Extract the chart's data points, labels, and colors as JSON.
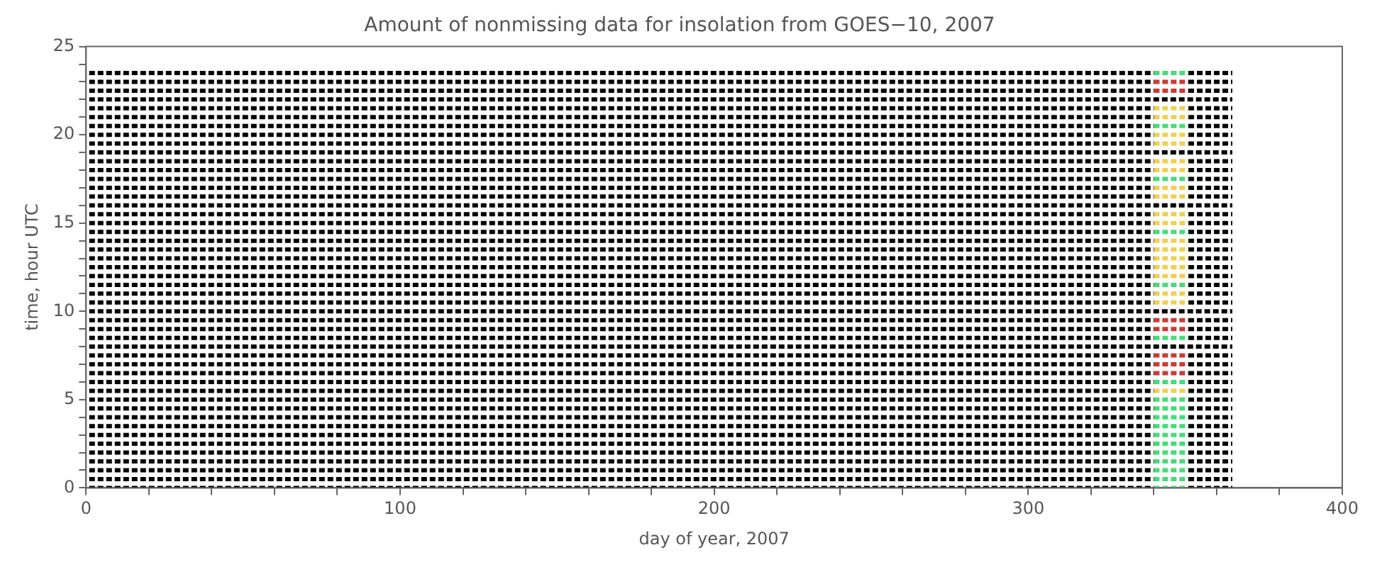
{
  "chart_data": {
    "type": "line",
    "title": "Amount of nonmissing data for insolation from GOES−10, 2007",
    "xlabel": "day of year, 2007",
    "ylabel": "time, hour UTC",
    "xlim": [
      0,
      400
    ],
    "xticks": [
      0,
      {
        "value": 20,
        "label": null
      },
      {
        "value": 40,
        "label": null
      },
      {
        "value": 60,
        "label": null
      },
      {
        "value": 80,
        "label": null
      },
      100,
      {
        "value": 120,
        "label": null
      },
      {
        "value": 140,
        "label": null
      },
      {
        "value": 160,
        "label": null
      },
      {
        "value": 180,
        "label": null
      },
      200,
      {
        "value": 220,
        "label": null
      },
      {
        "value": 240,
        "label": null
      },
      {
        "value": 260,
        "label": null
      },
      {
        "value": 280,
        "label": null
      },
      300,
      {
        "value": 320,
        "label": null
      },
      {
        "value": 340,
        "label": null
      },
      {
        "value": 360,
        "label": null
      },
      {
        "value": 380,
        "label": null
      },
      400
    ],
    "ylim": [
      0,
      25
    ],
    "yticks": [
      0,
      {
        "value": 1,
        "label": null
      },
      {
        "value": 2,
        "label": null
      },
      {
        "value": 3,
        "label": null
      },
      {
        "value": 4,
        "label": null
      },
      5,
      {
        "value": 6,
        "label": null
      },
      {
        "value": 7,
        "label": null
      },
      {
        "value": 8,
        "label": null
      },
      {
        "value": 9,
        "label": null
      },
      10,
      {
        "value": 11,
        "label": null
      },
      {
        "value": 12,
        "label": null
      },
      {
        "value": 13,
        "label": null
      },
      {
        "value": 14,
        "label": null
      },
      15,
      {
        "value": 16,
        "label": null
      },
      {
        "value": 17,
        "label": null
      },
      {
        "value": 18,
        "label": null
      },
      {
        "value": 19,
        "label": null
      },
      20,
      {
        "value": 21,
        "label": null
      },
      {
        "value": 22,
        "label": null
      },
      {
        "value": 23,
        "label": null
      },
      {
        "value": 24,
        "label": null
      },
      25
    ],
    "grid": false,
    "legend": false,
    "marker": "none",
    "line_style": "dashed",
    "series": [
      {
        "color": "#000000",
        "x": [
          1,
          340
        ],
        "values": [
          0,
          0
        ]
      },
      {
        "color": "#44dd77",
        "x": [
          340,
          351
        ],
        "values": [
          0,
          0
        ]
      },
      {
        "color": "#000000",
        "x": [
          351,
          365
        ],
        "values": [
          0,
          0
        ]
      },
      {
        "color": "#000000",
        "x": [
          1,
          340
        ],
        "values": [
          0.5,
          0.5
        ]
      },
      {
        "color": "#44dd77",
        "x": [
          340,
          351
        ],
        "values": [
          0.5,
          0.5
        ]
      },
      {
        "color": "#000000",
        "x": [
          351,
          365
        ],
        "values": [
          0.5,
          0.5
        ]
      },
      {
        "color": "#000000",
        "x": [
          1,
          340
        ],
        "values": [
          1,
          1
        ]
      },
      {
        "color": "#44dd77",
        "x": [
          340,
          351
        ],
        "values": [
          1,
          1
        ]
      },
      {
        "color": "#000000",
        "x": [
          351,
          365
        ],
        "values": [
          1,
          1
        ]
      },
      {
        "color": "#000000",
        "x": [
          1,
          340
        ],
        "values": [
          1.5,
          1.5
        ]
      },
      {
        "color": "#44dd77",
        "x": [
          340,
          351
        ],
        "values": [
          1.5,
          1.5
        ]
      },
      {
        "color": "#000000",
        "x": [
          351,
          365
        ],
        "values": [
          1.5,
          1.5
        ]
      },
      {
        "color": "#000000",
        "x": [
          1,
          340
        ],
        "values": [
          2,
          2
        ]
      },
      {
        "color": "#44dd77",
        "x": [
          340,
          351
        ],
        "values": [
          2,
          2
        ]
      },
      {
        "color": "#000000",
        "x": [
          351,
          365
        ],
        "values": [
          2,
          2
        ]
      },
      {
        "color": "#000000",
        "x": [
          1,
          340
        ],
        "values": [
          2.5,
          2.5
        ]
      },
      {
        "color": "#44dd77",
        "x": [
          340,
          351
        ],
        "values": [
          2.5,
          2.5
        ]
      },
      {
        "color": "#000000",
        "x": [
          351,
          365
        ],
        "values": [
          2.5,
          2.5
        ]
      },
      {
        "color": "#000000",
        "x": [
          1,
          340
        ],
        "values": [
          3,
          3
        ]
      },
      {
        "color": "#44dd77",
        "x": [
          340,
          351
        ],
        "values": [
          3,
          3
        ]
      },
      {
        "color": "#000000",
        "x": [
          351,
          365
        ],
        "values": [
          3,
          3
        ]
      },
      {
        "color": "#000000",
        "x": [
          1,
          340
        ],
        "values": [
          3.5,
          3.5
        ]
      },
      {
        "color": "#44dd77",
        "x": [
          340,
          351
        ],
        "values": [
          3.5,
          3.5
        ]
      },
      {
        "color": "#000000",
        "x": [
          351,
          365
        ],
        "values": [
          3.5,
          3.5
        ]
      },
      {
        "color": "#000000",
        "x": [
          1,
          340
        ],
        "values": [
          4,
          4
        ]
      },
      {
        "color": "#44dd77",
        "x": [
          340,
          351
        ],
        "values": [
          4,
          4
        ]
      },
      {
        "color": "#000000",
        "x": [
          351,
          365
        ],
        "values": [
          4,
          4
        ]
      },
      {
        "color": "#000000",
        "x": [
          1,
          340
        ],
        "values": [
          4.5,
          4.5
        ]
      },
      {
        "color": "#44dd77",
        "x": [
          340,
          351
        ],
        "values": [
          4.5,
          4.5
        ]
      },
      {
        "color": "#000000",
        "x": [
          351,
          365
        ],
        "values": [
          4.5,
          4.5
        ]
      },
      {
        "color": "#000000",
        "x": [
          1,
          340
        ],
        "values": [
          5,
          5
        ]
      },
      {
        "color": "#44dd77",
        "x": [
          340,
          351
        ],
        "values": [
          5,
          5
        ]
      },
      {
        "color": "#000000",
        "x": [
          351,
          365
        ],
        "values": [
          5,
          5
        ]
      },
      {
        "color": "#000000",
        "x": [
          1,
          340
        ],
        "values": [
          5.5,
          5.5
        ]
      },
      {
        "color": "#f0d050",
        "x": [
          340,
          351
        ],
        "values": [
          5.5,
          5.5
        ]
      },
      {
        "color": "#000000",
        "x": [
          351,
          365
        ],
        "values": [
          5.5,
          5.5
        ]
      },
      {
        "color": "#000000",
        "x": [
          1,
          340
        ],
        "values": [
          6,
          6
        ]
      },
      {
        "color": "#44dd77",
        "x": [
          340,
          351
        ],
        "values": [
          6,
          6
        ]
      },
      {
        "color": "#000000",
        "x": [
          351,
          365
        ],
        "values": [
          6,
          6
        ]
      },
      {
        "color": "#000000",
        "x": [
          1,
          340
        ],
        "values": [
          6.5,
          6.5
        ]
      },
      {
        "color": "#cc3b33",
        "x": [
          340,
          351
        ],
        "values": [
          6.5,
          6.5
        ]
      },
      {
        "color": "#000000",
        "x": [
          351,
          365
        ],
        "values": [
          6.5,
          6.5
        ]
      },
      {
        "color": "#000000",
        "x": [
          1,
          340
        ],
        "values": [
          7,
          7
        ]
      },
      {
        "color": "#cc3b33",
        "x": [
          340,
          351
        ],
        "values": [
          7,
          7
        ]
      },
      {
        "color": "#000000",
        "x": [
          351,
          365
        ],
        "values": [
          7,
          7
        ]
      },
      {
        "color": "#000000",
        "x": [
          1,
          340
        ],
        "values": [
          7.5,
          7.5
        ]
      },
      {
        "color": "#cc3b33",
        "x": [
          340,
          351
        ],
        "values": [
          7.5,
          7.5
        ]
      },
      {
        "color": "#000000",
        "x": [
          351,
          365
        ],
        "values": [
          7.5,
          7.5
        ]
      },
      {
        "color": "#000000",
        "x": [
          1,
          365
        ],
        "values": [
          8,
          8
        ]
      },
      {
        "color": "#000000",
        "x": [
          1,
          340
        ],
        "values": [
          8.5,
          8.5
        ]
      },
      {
        "color": "#44dd77",
        "x": [
          340,
          351
        ],
        "values": [
          8.5,
          8.5
        ]
      },
      {
        "color": "#000000",
        "x": [
          351,
          365
        ],
        "values": [
          8.5,
          8.5
        ]
      },
      {
        "color": "#000000",
        "x": [
          1,
          340
        ],
        "values": [
          9,
          9
        ]
      },
      {
        "color": "#cc3b33",
        "x": [
          340,
          351
        ],
        "values": [
          9,
          9
        ]
      },
      {
        "color": "#000000",
        "x": [
          351,
          365
        ],
        "values": [
          9,
          9
        ]
      },
      {
        "color": "#000000",
        "x": [
          1,
          340
        ],
        "values": [
          9.5,
          9.5
        ]
      },
      {
        "color": "#cc3b33",
        "x": [
          340,
          351
        ],
        "values": [
          9.5,
          9.5
        ]
      },
      {
        "color": "#000000",
        "x": [
          351,
          365
        ],
        "values": [
          9.5,
          9.5
        ]
      },
      {
        "color": "#000000",
        "x": [
          1,
          365
        ],
        "values": [
          10,
          10
        ]
      },
      {
        "color": "#000000",
        "x": [
          1,
          340
        ],
        "values": [
          10.5,
          10.5
        ]
      },
      {
        "color": "#f0d050",
        "x": [
          340,
          351
        ],
        "values": [
          10.5,
          10.5
        ]
      },
      {
        "color": "#000000",
        "x": [
          351,
          365
        ],
        "values": [
          10.5,
          10.5
        ]
      },
      {
        "color": "#000000",
        "x": [
          1,
          340
        ],
        "values": [
          11,
          11
        ]
      },
      {
        "color": "#f0d050",
        "x": [
          340,
          351
        ],
        "values": [
          11,
          11
        ]
      },
      {
        "color": "#000000",
        "x": [
          351,
          365
        ],
        "values": [
          11,
          11
        ]
      },
      {
        "color": "#000000",
        "x": [
          1,
          340
        ],
        "values": [
          11.5,
          11.5
        ]
      },
      {
        "color": "#44dd77",
        "x": [
          340,
          351
        ],
        "values": [
          11.5,
          11.5
        ]
      },
      {
        "color": "#000000",
        "x": [
          351,
          365
        ],
        "values": [
          11.5,
          11.5
        ]
      },
      {
        "color": "#000000",
        "x": [
          1,
          340
        ],
        "values": [
          12,
          12
        ]
      },
      {
        "color": "#f0d050",
        "x": [
          340,
          351
        ],
        "values": [
          12,
          12
        ]
      },
      {
        "color": "#000000",
        "x": [
          351,
          365
        ],
        "values": [
          12,
          12
        ]
      },
      {
        "color": "#000000",
        "x": [
          1,
          340
        ],
        "values": [
          12.5,
          12.5
        ]
      },
      {
        "color": "#f0d050",
        "x": [
          340,
          351
        ],
        "values": [
          12.5,
          12.5
        ]
      },
      {
        "color": "#000000",
        "x": [
          351,
          365
        ],
        "values": [
          12.5,
          12.5
        ]
      },
      {
        "color": "#000000",
        "x": [
          1,
          340
        ],
        "values": [
          13,
          13
        ]
      },
      {
        "color": "#f0d050",
        "x": [
          340,
          351
        ],
        "values": [
          13,
          13
        ]
      },
      {
        "color": "#000000",
        "x": [
          351,
          365
        ],
        "values": [
          13,
          13
        ]
      },
      {
        "color": "#000000",
        "x": [
          1,
          340
        ],
        "values": [
          13.5,
          13.5
        ]
      },
      {
        "color": "#f0d050",
        "x": [
          340,
          351
        ],
        "values": [
          13.5,
          13.5
        ]
      },
      {
        "color": "#000000",
        "x": [
          351,
          365
        ],
        "values": [
          13.5,
          13.5
        ]
      },
      {
        "color": "#000000",
        "x": [
          1,
          340
        ],
        "values": [
          14,
          14
        ]
      },
      {
        "color": "#f0d050",
        "x": [
          340,
          351
        ],
        "values": [
          14,
          14
        ]
      },
      {
        "color": "#000000",
        "x": [
          351,
          365
        ],
        "values": [
          14,
          14
        ]
      },
      {
        "color": "#000000",
        "x": [
          1,
          340
        ],
        "values": [
          14.5,
          14.5
        ]
      },
      {
        "color": "#44dd77",
        "x": [
          340,
          351
        ],
        "values": [
          14.5,
          14.5
        ]
      },
      {
        "color": "#000000",
        "x": [
          351,
          365
        ],
        "values": [
          14.5,
          14.5
        ]
      },
      {
        "color": "#000000",
        "x": [
          1,
          340
        ],
        "values": [
          15,
          15
        ]
      },
      {
        "color": "#f0d050",
        "x": [
          340,
          351
        ],
        "values": [
          15,
          15
        ]
      },
      {
        "color": "#000000",
        "x": [
          351,
          365
        ],
        "values": [
          15,
          15
        ]
      },
      {
        "color": "#000000",
        "x": [
          1,
          340
        ],
        "values": [
          15.5,
          15.5
        ]
      },
      {
        "color": "#f0d050",
        "x": [
          340,
          351
        ],
        "values": [
          15.5,
          15.5
        ]
      },
      {
        "color": "#000000",
        "x": [
          351,
          365
        ],
        "values": [
          15.5,
          15.5
        ]
      },
      {
        "color": "#000000",
        "x": [
          1,
          365
        ],
        "values": [
          16,
          16
        ]
      },
      {
        "color": "#000000",
        "x": [
          1,
          340
        ],
        "values": [
          16.5,
          16.5
        ]
      },
      {
        "color": "#f0d050",
        "x": [
          340,
          351
        ],
        "values": [
          16.5,
          16.5
        ]
      },
      {
        "color": "#000000",
        "x": [
          351,
          365
        ],
        "values": [
          16.5,
          16.5
        ]
      },
      {
        "color": "#000000",
        "x": [
          1,
          340
        ],
        "values": [
          17,
          17
        ]
      },
      {
        "color": "#f0d050",
        "x": [
          340,
          351
        ],
        "values": [
          17,
          17
        ]
      },
      {
        "color": "#000000",
        "x": [
          351,
          365
        ],
        "values": [
          17,
          17
        ]
      },
      {
        "color": "#000000",
        "x": [
          1,
          340
        ],
        "values": [
          17.5,
          17.5
        ]
      },
      {
        "color": "#44dd77",
        "x": [
          340,
          351
        ],
        "values": [
          17.5,
          17.5
        ]
      },
      {
        "color": "#000000",
        "x": [
          351,
          365
        ],
        "values": [
          17.5,
          17.5
        ]
      },
      {
        "color": "#000000",
        "x": [
          1,
          340
        ],
        "values": [
          18,
          18
        ]
      },
      {
        "color": "#f0d050",
        "x": [
          340,
          351
        ],
        "values": [
          18,
          18
        ]
      },
      {
        "color": "#000000",
        "x": [
          351,
          365
        ],
        "values": [
          18,
          18
        ]
      },
      {
        "color": "#000000",
        "x": [
          1,
          340
        ],
        "values": [
          18.5,
          18.5
        ]
      },
      {
        "color": "#f0d050",
        "x": [
          340,
          351
        ],
        "values": [
          18.5,
          18.5
        ]
      },
      {
        "color": "#000000",
        "x": [
          351,
          365
        ],
        "values": [
          18.5,
          18.5
        ]
      },
      {
        "color": "#000000",
        "x": [
          1,
          365
        ],
        "values": [
          19,
          19
        ]
      },
      {
        "color": "#000000",
        "x": [
          1,
          340
        ],
        "values": [
          19.5,
          19.5
        ]
      },
      {
        "color": "#f0d050",
        "x": [
          340,
          351
        ],
        "values": [
          19.5,
          19.5
        ]
      },
      {
        "color": "#000000",
        "x": [
          351,
          365
        ],
        "values": [
          19.5,
          19.5
        ]
      },
      {
        "color": "#000000",
        "x": [
          1,
          340
        ],
        "values": [
          20,
          20
        ]
      },
      {
        "color": "#f0d050",
        "x": [
          340,
          351
        ],
        "values": [
          20,
          20
        ]
      },
      {
        "color": "#000000",
        "x": [
          351,
          365
        ],
        "values": [
          20,
          20
        ]
      },
      {
        "color": "#000000",
        "x": [
          1,
          340
        ],
        "values": [
          20.5,
          20.5
        ]
      },
      {
        "color": "#44dd77",
        "x": [
          340,
          351
        ],
        "values": [
          20.5,
          20.5
        ]
      },
      {
        "color": "#000000",
        "x": [
          351,
          365
        ],
        "values": [
          20.5,
          20.5
        ]
      },
      {
        "color": "#000000",
        "x": [
          1,
          340
        ],
        "values": [
          21,
          21
        ]
      },
      {
        "color": "#f0d050",
        "x": [
          340,
          351
        ],
        "values": [
          21,
          21
        ]
      },
      {
        "color": "#000000",
        "x": [
          351,
          365
        ],
        "values": [
          21,
          21
        ]
      },
      {
        "color": "#000000",
        "x": [
          1,
          340
        ],
        "values": [
          21.5,
          21.5
        ]
      },
      {
        "color": "#f0d050",
        "x": [
          340,
          351
        ],
        "values": [
          21.5,
          21.5
        ]
      },
      {
        "color": "#000000",
        "x": [
          351,
          365
        ],
        "values": [
          21.5,
          21.5
        ]
      },
      {
        "color": "#000000",
        "x": [
          1,
          365
        ],
        "values": [
          22,
          22
        ]
      },
      {
        "color": "#000000",
        "x": [
          1,
          340
        ],
        "values": [
          22.5,
          22.5
        ]
      },
      {
        "color": "#cc3b33",
        "x": [
          340,
          351
        ],
        "values": [
          22.5,
          22.5
        ]
      },
      {
        "color": "#000000",
        "x": [
          351,
          365
        ],
        "values": [
          22.5,
          22.5
        ]
      },
      {
        "color": "#000000",
        "x": [
          1,
          340
        ],
        "values": [
          23,
          23
        ]
      },
      {
        "color": "#cc3b33",
        "x": [
          340,
          351
        ],
        "values": [
          23,
          23
        ]
      },
      {
        "color": "#000000",
        "x": [
          351,
          365
        ],
        "values": [
          23,
          23
        ]
      },
      {
        "color": "#000000",
        "x": [
          1,
          340
        ],
        "values": [
          23.5,
          23.5
        ]
      },
      {
        "color": "#44dd77",
        "x": [
          340,
          351
        ],
        "values": [
          23.5,
          23.5
        ]
      },
      {
        "color": "#000000",
        "x": [
          351,
          365
        ],
        "values": [
          23.5,
          23.5
        ]
      }
    ]
  }
}
